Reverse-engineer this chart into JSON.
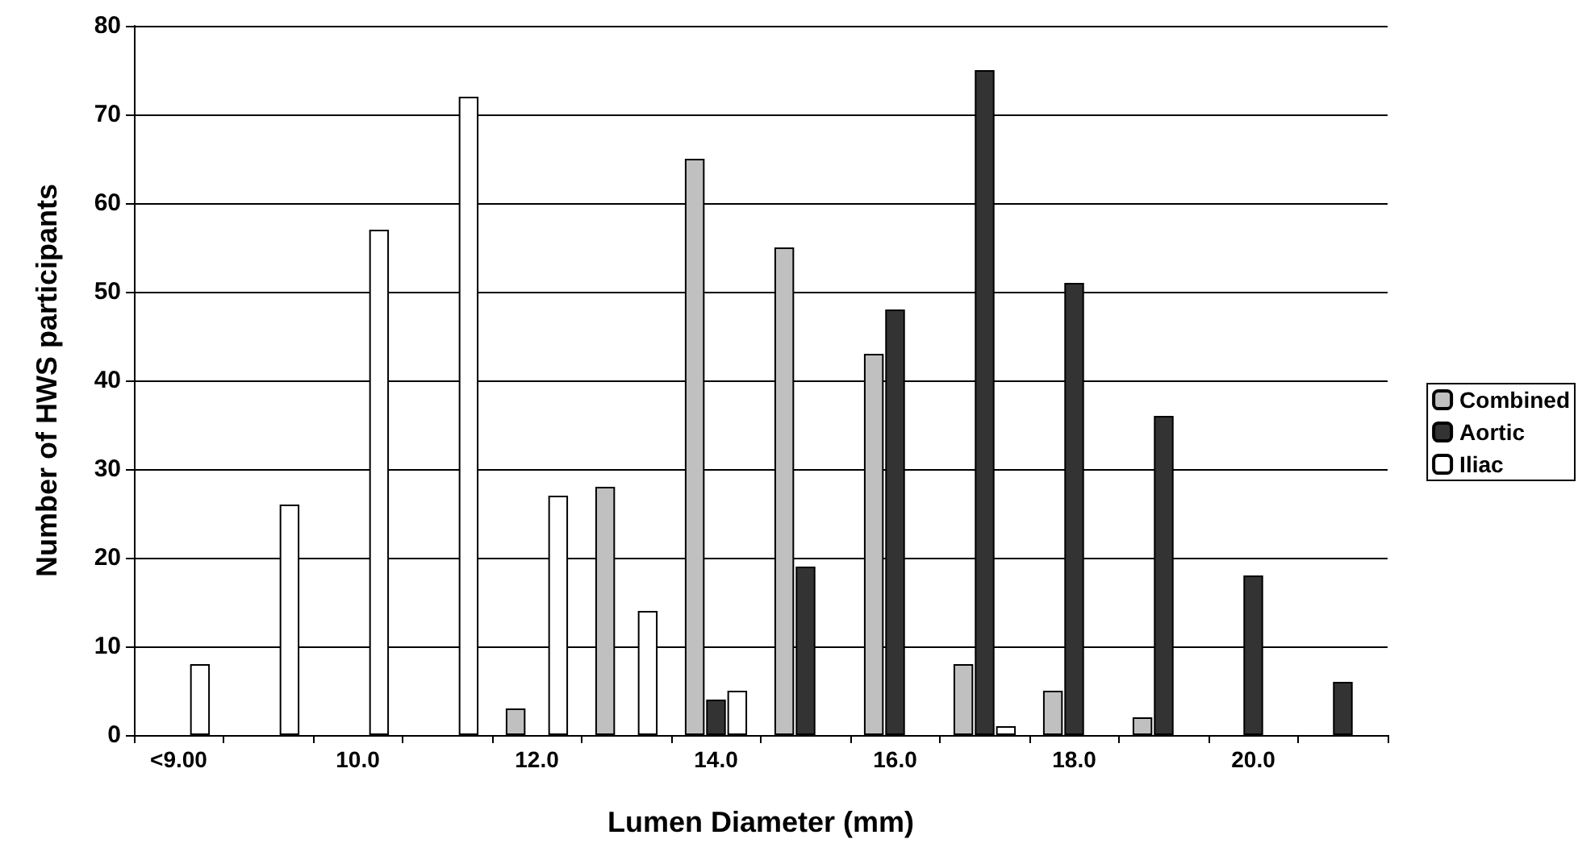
{
  "chart_data": {
    "type": "bar",
    "xlabel": "Lumen Diameter (mm)",
    "ylabel": "Number of HWS participants",
    "categories": [
      "<9.00",
      null,
      "10.0",
      null,
      "12.0",
      null,
      "14.0",
      null,
      "16.0",
      null,
      "18.0",
      null,
      "20.0",
      null
    ],
    "series": [
      {
        "name": "Combined",
        "color": "#c0c0c0",
        "values": [
          null,
          null,
          null,
          null,
          3,
          28,
          65,
          55,
          43,
          8,
          5,
          2,
          null,
          null
        ]
      },
      {
        "name": "Aortic",
        "color": "#333333",
        "values": [
          null,
          null,
          null,
          null,
          null,
          null,
          4,
          19,
          48,
          75,
          51,
          36,
          18,
          6
        ]
      },
      {
        "name": "Iliac",
        "color": "#ffffff",
        "values": [
          8,
          26,
          57,
          72,
          27,
          14,
          5,
          null,
          null,
          1,
          null,
          null,
          null,
          null
        ]
      }
    ],
    "ylim": [
      0,
      80
    ],
    "yticks": [
      0,
      10,
      20,
      30,
      40,
      50,
      60,
      70,
      80
    ],
    "grid": "y",
    "legend": "right"
  }
}
